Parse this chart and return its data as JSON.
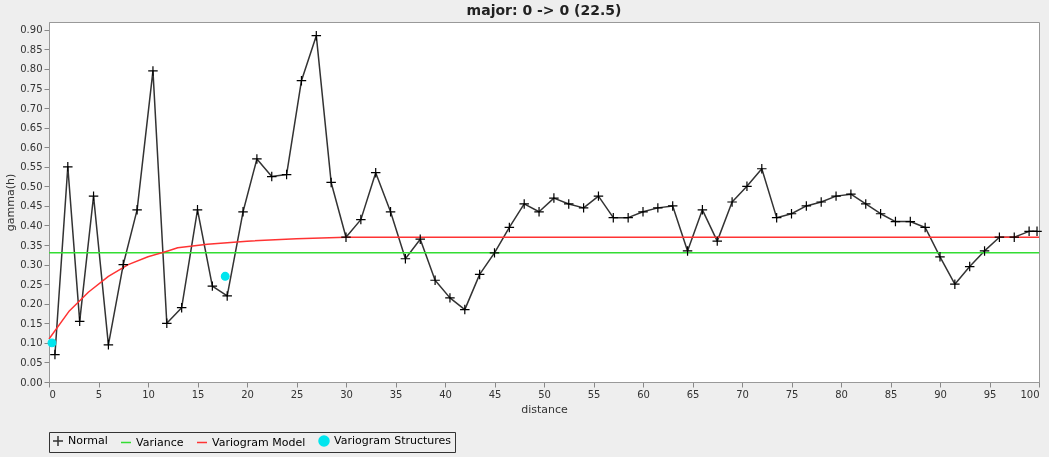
{
  "chart_data": {
    "type": "line",
    "title": "major: 0 -> 0 (22.5)",
    "xlabel": "distance",
    "ylabel": "gamma(h)",
    "xlim": [
      0,
      100
    ],
    "xticks": [
      0,
      5,
      10,
      15,
      20,
      25,
      30,
      35,
      40,
      45,
      50,
      55,
      60,
      65,
      70,
      75,
      80,
      85,
      90,
      95,
      100
    ],
    "ylim": [
      0,
      0.92
    ],
    "yticks": [
      {
        "value": 0,
        "label": "0.00"
      },
      0.05,
      {
        "value": 0.1,
        "label": "0.10"
      },
      0.15,
      {
        "value": 0.2,
        "label": "0.20"
      },
      0.25,
      {
        "value": 0.3,
        "label": "0.30"
      },
      0.35,
      {
        "value": 0.4,
        "label": "0.40"
      },
      0.45,
      {
        "value": 0.5,
        "label": "0.50"
      },
      0.55,
      {
        "value": 0.6,
        "label": "0.60"
      },
      0.65,
      {
        "value": 0.7,
        "label": "0.70"
      },
      0.75,
      {
        "value": 0.8,
        "label": "0.80"
      },
      0.85,
      {
        "value": 0.9,
        "label": "0.90"
      }
    ],
    "grid": false,
    "legend": "bottom",
    "series": [
      {
        "name": "Normal",
        "color": "#333333",
        "marker": "cross",
        "x": [
          0.6,
          1.9,
          3.1,
          4.5,
          6.0,
          7.5,
          8.9,
          10.5,
          11.9,
          13.4,
          15.0,
          16.5,
          18.0,
          19.6,
          21.0,
          22.5,
          24.0,
          25.5,
          27.0,
          28.5,
          30.0,
          31.5,
          33.0,
          34.5,
          36.0,
          37.5,
          39.0,
          40.5,
          42.0,
          43.5,
          45.0,
          46.5,
          48.0,
          49.5,
          51.0,
          52.5,
          54.0,
          55.5,
          57.0,
          58.5,
          60.0,
          61.5,
          63.0,
          64.5,
          66.0,
          67.5,
          69.0,
          70.5,
          72.0,
          73.5,
          75.0,
          76.5,
          78.0,
          79.5,
          81.0,
          82.5,
          84.0,
          85.5,
          87.0,
          88.5,
          90.0,
          91.5,
          93.0,
          94.5,
          96.0,
          97.5,
          99.0,
          99.8
        ],
        "values": [
          0.07,
          0.55,
          0.155,
          0.475,
          0.095,
          0.3,
          0.44,
          0.795,
          0.15,
          0.19,
          0.44,
          0.245,
          0.22,
          0.435,
          0.57,
          0.525,
          0.53,
          0.77,
          0.885,
          0.51,
          0.37,
          0.415,
          0.535,
          0.435,
          0.315,
          0.365,
          0.26,
          0.215,
          0.185,
          0.275,
          0.33,
          0.395,
          0.455,
          0.435,
          0.47,
          0.455,
          0.445,
          0.475,
          0.42,
          0.42,
          0.435,
          0.445,
          0.45,
          0.335,
          0.44,
          0.36,
          0.46,
          0.5,
          0.545,
          0.42,
          0.43,
          0.45,
          0.46,
          0.475,
          0.48,
          0.455,
          0.43,
          0.41,
          0.41,
          0.395,
          0.32,
          0.25,
          0.295,
          0.335,
          0.37,
          0.37,
          0.385,
          0.385
        ]
      },
      {
        "name": "Variance",
        "color": "#33dd33",
        "marker": "none",
        "x": [
          0,
          100
        ],
        "values": [
          0.33,
          0.33
        ]
      },
      {
        "name": "Variogram Model",
        "color": "#ff3333",
        "marker": "none",
        "x": [
          0,
          2,
          4,
          6,
          8,
          10,
          12,
          13,
          16,
          20,
          25,
          30,
          100
        ],
        "values": [
          0.11,
          0.18,
          0.23,
          0.27,
          0.3,
          0.32,
          0.335,
          0.343,
          0.352,
          0.36,
          0.366,
          0.37,
          0.37
        ]
      },
      {
        "name": "Variogram Structures",
        "type": "scatter",
        "color": "#00e5ee",
        "marker": "circle",
        "x": [
          0.3,
          17.8
        ],
        "values": [
          0.1,
          0.27
        ]
      }
    ]
  }
}
